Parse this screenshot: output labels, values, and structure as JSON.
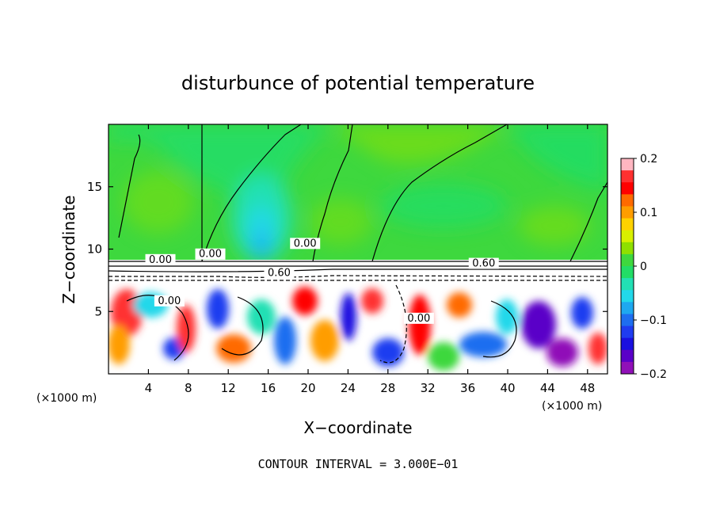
{
  "chart_data": {
    "type": "heatmap",
    "title": "disturbunce of potential temperature",
    "xlabel": "X−coordinate",
    "ylabel": "Z−coordinate",
    "x_unit_left": "(×1000 m)",
    "x_unit_right": "(×1000 m)",
    "xlim": [
      0,
      50
    ],
    "ylim": [
      0,
      20
    ],
    "x_ticks": [
      4,
      8,
      12,
      16,
      20,
      24,
      28,
      32,
      36,
      40,
      44,
      48
    ],
    "y_ticks": [
      5,
      10,
      15
    ],
    "colorbar": {
      "range": [
        -0.2,
        0.2
      ],
      "ticks": [
        0.2,
        0.1,
        0,
        -0.1,
        -0.2
      ],
      "tick_labels": [
        "0.2",
        "0.1",
        "0",
        "−0.1",
        "−0.2"
      ],
      "colors": [
        "#ffb6c1",
        "#ff3030",
        "#ff0000",
        "#ff6a00",
        "#ff9d00",
        "#ffd200",
        "#d8f000",
        "#8fe000",
        "#3ed83e",
        "#22dd66",
        "#22e0b4",
        "#22d8ea",
        "#1ea8f0",
        "#1e6ef0",
        "#1f3cf0",
        "#1a10e0",
        "#5a00c8",
        "#9010b8"
      ]
    },
    "contour_labels": [
      {
        "text": "0.00",
        "x": 10.2,
        "z": 9.35
      },
      {
        "text": "0.00",
        "x": 5.2,
        "z": 8.9
      },
      {
        "text": "0.00",
        "x": 19.7,
        "z": 10.2
      },
      {
        "text": "0.60",
        "x": 37.6,
        "z": 8.6
      },
      {
        "text": "0.60",
        "x": 17.1,
        "z": 7.85
      },
      {
        "text": "0.00",
        "x": 6.1,
        "z": 5.6
      },
      {
        "text": "0.00",
        "x": 31.1,
        "z": 4.2
      }
    ],
    "annotation": "CONTOUR INTERVAL = 3.000E−01",
    "grid": false,
    "legend": "colorbar-right"
  }
}
